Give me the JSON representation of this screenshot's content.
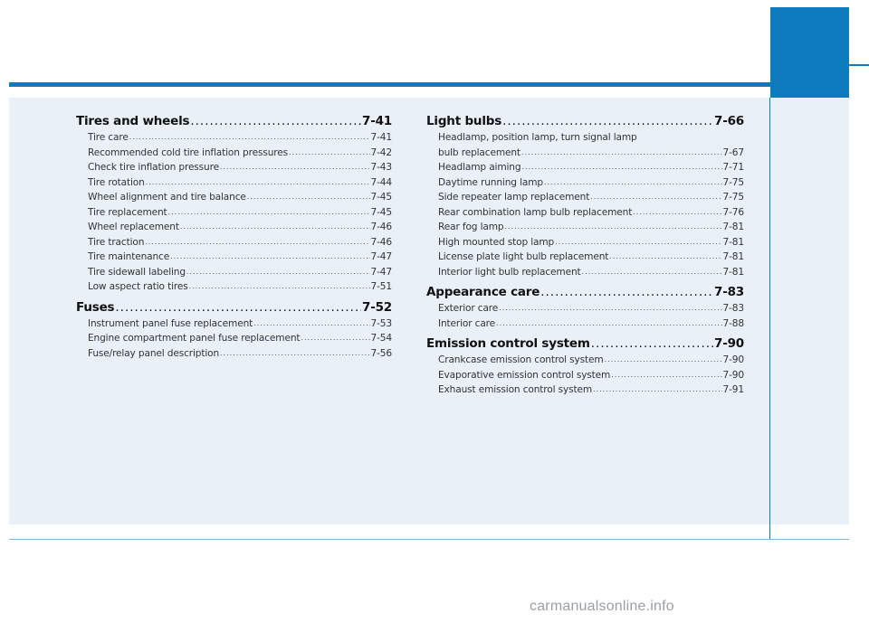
{
  "left_column": [
    {
      "type": "section",
      "title": "Tires and wheels",
      "page": "7-41"
    },
    {
      "type": "sub",
      "title": "Tire care",
      "page": "7-41"
    },
    {
      "type": "sub",
      "title": "Recommended cold tire inflation pressures ",
      "page": "7-42"
    },
    {
      "type": "sub",
      "title": "Check tire inflation pressure",
      "page": "7-43"
    },
    {
      "type": "sub",
      "title": "Tire rotation ",
      "page": "7-44"
    },
    {
      "type": "sub",
      "title": "Wheel alignment and tire balance ",
      "page": "7-45"
    },
    {
      "type": "sub",
      "title": "Tire replacement ",
      "page": "7-45"
    },
    {
      "type": "sub",
      "title": "Wheel replacement ",
      "page": "7-46"
    },
    {
      "type": "sub",
      "title": "Tire traction ",
      "page": "7-46"
    },
    {
      "type": "sub",
      "title": "Tire maintenance ",
      "page": "7-47"
    },
    {
      "type": "sub",
      "title": "Tire sidewall labeling",
      "page": "7-47"
    },
    {
      "type": "sub",
      "title": "Low aspect ratio tires ",
      "page": "7-51"
    },
    {
      "type": "section",
      "title": "Fuses",
      "page": "7-52"
    },
    {
      "type": "sub",
      "title": "Instrument panel fuse replacement ",
      "page": "7-53"
    },
    {
      "type": "sub",
      "title": "Engine compartment panel fuse replacement",
      "page": "7-54"
    },
    {
      "type": "sub",
      "title": "Fuse/relay panel description ",
      "page": "7-56"
    }
  ],
  "right_column": [
    {
      "type": "section",
      "title": "Light bulbs",
      "page": "7-66"
    },
    {
      "type": "plain",
      "title": "Headlamp, position lamp, turn signal lamp"
    },
    {
      "type": "sub",
      "title": "bulb replacement",
      "page": "7-67"
    },
    {
      "type": "sub",
      "title": "Headlamp aiming ",
      "page": "7-71"
    },
    {
      "type": "sub",
      "title": "Daytime running lamp ",
      "page": "7-75"
    },
    {
      "type": "sub",
      "title": "Side repeater lamp replacement ",
      "page": "7-75"
    },
    {
      "type": "sub",
      "title": "Rear combination lamp bulb replacement ",
      "page": "7-76"
    },
    {
      "type": "sub",
      "title": "Rear fog lamp ",
      "page": "7-81"
    },
    {
      "type": "sub",
      "title": "High mounted stop lamp ",
      "page": "7-81"
    },
    {
      "type": "sub",
      "title": "License plate light bulb replacement ",
      "page": "7-81"
    },
    {
      "type": "sub",
      "title": "Interior light bulb replacement ",
      "page": "7-81"
    },
    {
      "type": "section",
      "title": "Appearance care ",
      "page": "7-83"
    },
    {
      "type": "sub",
      "title": "Exterior care ",
      "page": "7-83"
    },
    {
      "type": "sub",
      "title": "Interior care",
      "page": "7-88"
    },
    {
      "type": "section",
      "title": "Emission control system ",
      "page": "7-90"
    },
    {
      "type": "sub",
      "title": "Crankcase emission control system ",
      "page": "7-90"
    },
    {
      "type": "sub",
      "title": "Evaporative emission control system",
      "page": "7-90"
    },
    {
      "type": "sub",
      "title": "Exhaust emission control system ",
      "page": "7-91"
    }
  ],
  "watermark": "carmanualsonline.info",
  "colors": {
    "accent": "#0f7bbf",
    "panel": "#e9f0f7"
  }
}
